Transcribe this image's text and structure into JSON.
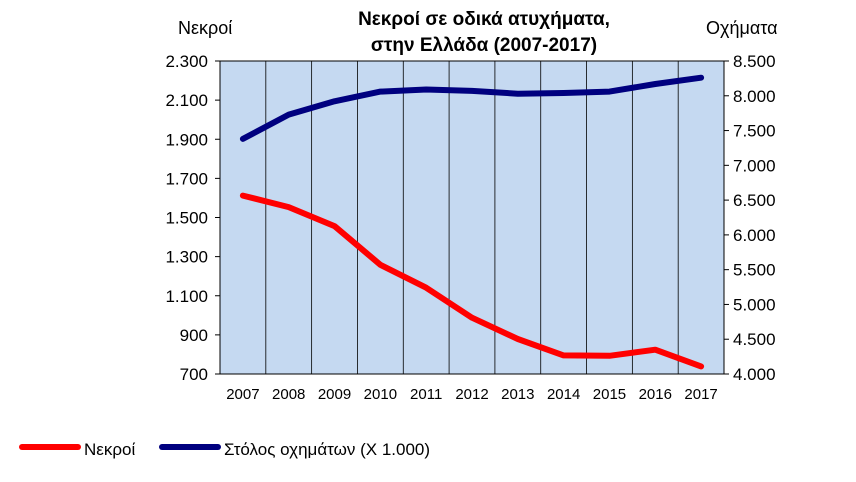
{
  "chart_data": {
    "type": "line",
    "title_line1": "Νεκροί σε οδικά ατυχήματα,",
    "title_line2": "στην Ελλάδα (2007-2017)",
    "ylabel_left": "Νεκροί",
    "ylabel_right": "Οχήματα",
    "categories": [
      "2007",
      "2008",
      "2009",
      "2010",
      "2011",
      "2012",
      "2013",
      "2014",
      "2015",
      "2016",
      "2017"
    ],
    "y_left": {
      "range": [
        700,
        2300
      ],
      "ticks": [
        2300,
        2100,
        1900,
        1700,
        1500,
        1300,
        1100,
        900,
        700
      ],
      "tick_labels": [
        "2.300",
        "2.100",
        "1.900",
        "1.700",
        "1.500",
        "1.300",
        "1.100",
        "900",
        "700"
      ]
    },
    "y_right": {
      "range": [
        4000,
        8500
      ],
      "ticks": [
        8500,
        8000,
        7500,
        7000,
        6500,
        6000,
        5500,
        5000,
        4500,
        4000
      ],
      "tick_labels": [
        "8.500",
        "8.000",
        "7.500",
        "7.000",
        "6.500",
        "6.000",
        "5.500",
        "5.000",
        "4.500",
        "4.000"
      ]
    },
    "series": [
      {
        "name": "Νεκροί",
        "axis": "left",
        "color": "#ff0000",
        "values": [
          1612,
          1553,
          1456,
          1258,
          1141,
          988,
          879,
          795,
          793,
          824,
          739
        ]
      },
      {
        "name": "Στόλος οχημάτων (Χ 1.000)",
        "axis": "right",
        "color": "#00007f",
        "values": [
          7380,
          7730,
          7920,
          8060,
          8090,
          8070,
          8030,
          8040,
          8060,
          8170,
          8260
        ]
      }
    ],
    "plot_background": "#c5d9f1",
    "grid": "vertical",
    "legend_position": "bottom-left"
  }
}
